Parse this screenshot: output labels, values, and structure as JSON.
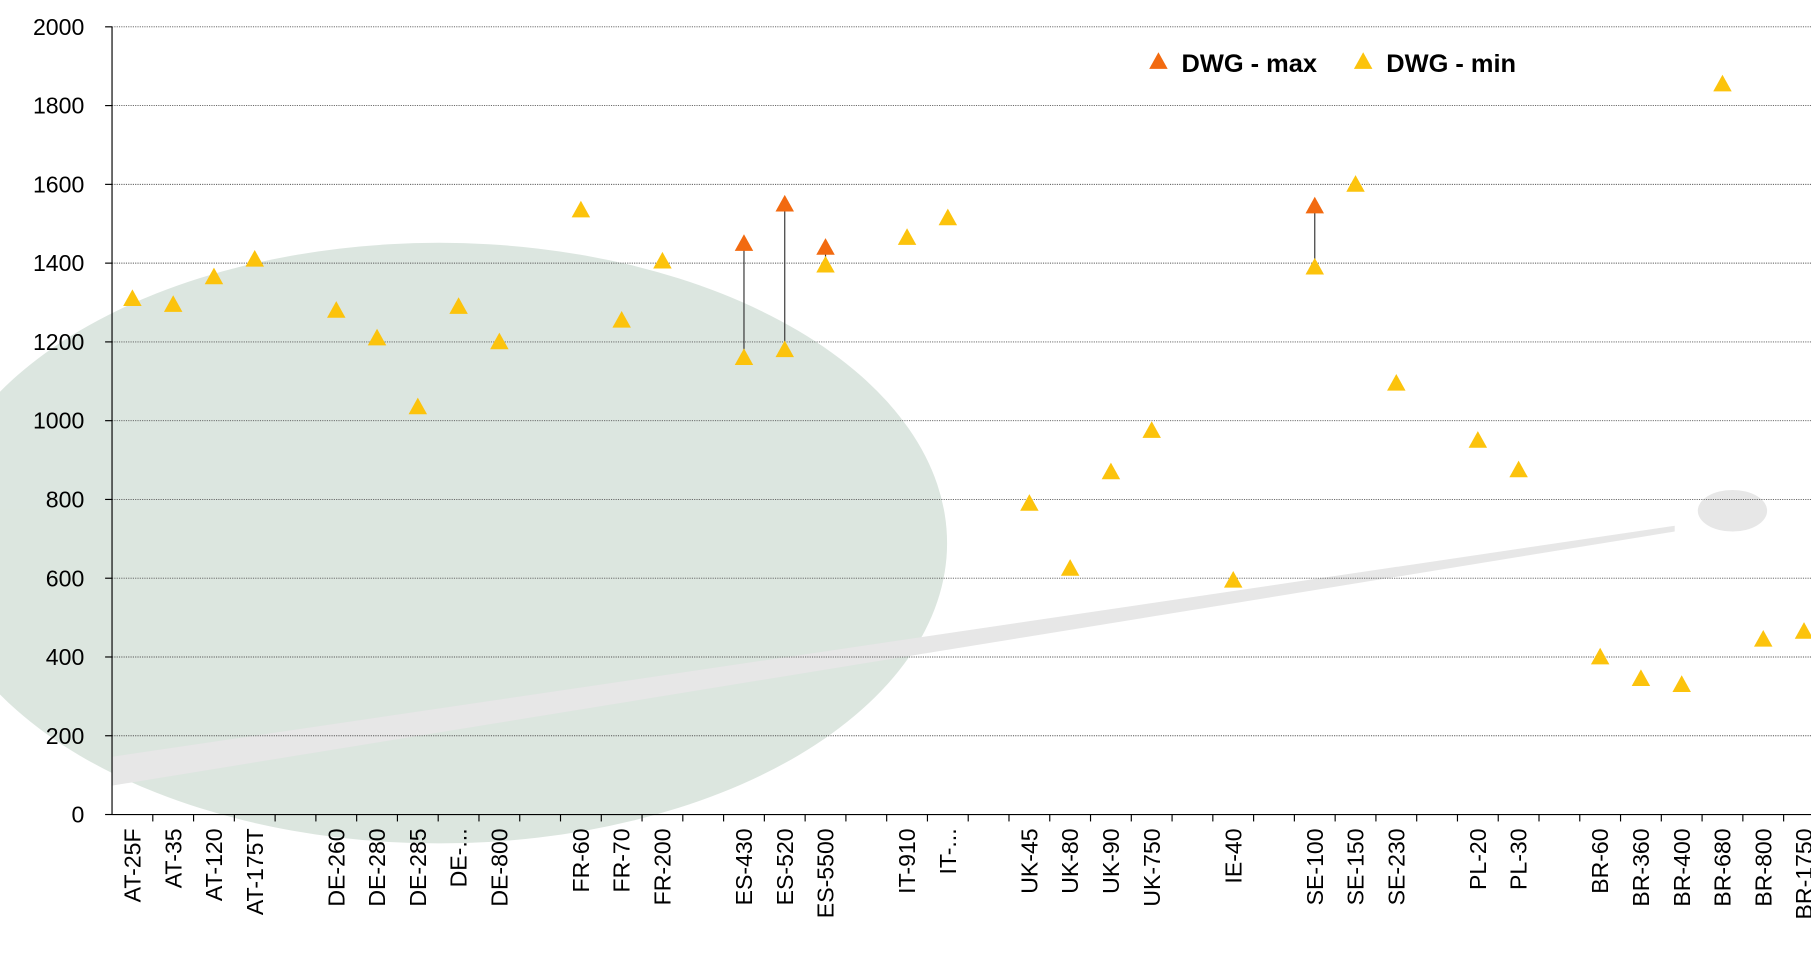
{
  "chart_data": {
    "type": "scatter",
    "categories": [
      "AT-25F",
      "AT-35",
      "AT-120",
      "AT-175T",
      null,
      "DE-260",
      "DE-280",
      "DE-285",
      "DE-...",
      "DE-800",
      null,
      "FR-60",
      "FR-70",
      "FR-200",
      null,
      "ES-430",
      "ES-520",
      "ES-5500",
      null,
      "IT-910",
      "IT-...",
      null,
      "UK-45",
      "UK-80",
      "UK-90",
      "UK-750",
      null,
      "IE-40",
      null,
      "SE-100",
      "SE-150",
      "SE-230",
      null,
      "PL-20",
      "PL-30",
      null,
      "BR-60",
      "BR-360",
      "BR-400",
      "BR-680",
      "BR-800",
      "BR-1750"
    ],
    "series": [
      {
        "name": "DWG - max",
        "color": "#f26a10",
        "values": [
          null,
          null,
          null,
          null,
          null,
          null,
          null,
          null,
          null,
          null,
          null,
          null,
          null,
          null,
          null,
          1450,
          1550,
          1440,
          null,
          null,
          null,
          null,
          null,
          null,
          null,
          null,
          null,
          null,
          null,
          1545,
          null,
          null,
          null,
          null,
          null,
          null,
          null,
          null,
          null,
          null,
          null,
          null
        ]
      },
      {
        "name": "DWG - min",
        "color": "#fcc30c",
        "values": [
          1310,
          1295,
          1365,
          1410,
          null,
          1280,
          1210,
          1035,
          1290,
          1200,
          null,
          1535,
          1255,
          1405,
          null,
          1160,
          1180,
          1395,
          null,
          1465,
          1515,
          null,
          790,
          625,
          870,
          975,
          null,
          595,
          null,
          1390,
          1600,
          1095,
          null,
          950,
          875,
          null,
          400,
          345,
          330,
          1855,
          445,
          465
        ]
      }
    ],
    "ylim": [
      0,
      2000
    ],
    "yticks": [
      0,
      200,
      400,
      600,
      800,
      1000,
      1200,
      1400,
      1600,
      1800,
      2000
    ],
    "grid": true,
    "legend": "top-right"
  }
}
